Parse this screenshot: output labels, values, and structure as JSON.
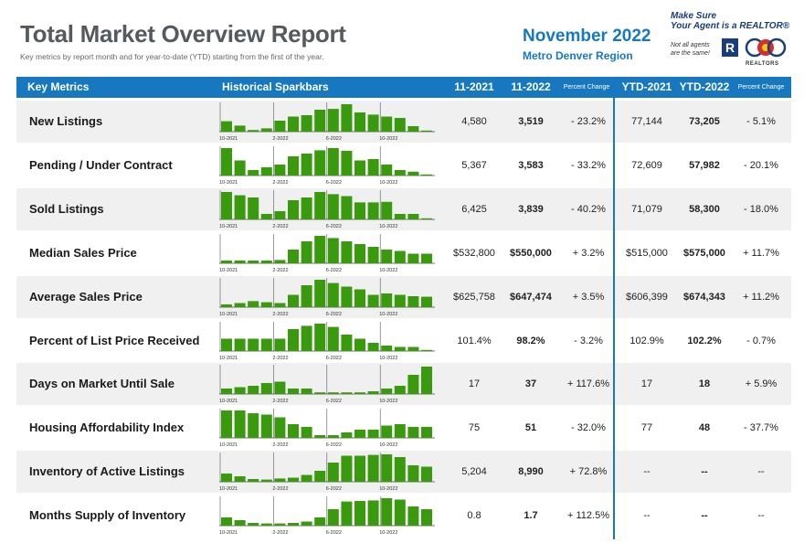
{
  "header": {
    "title": "Total Market Overview Report",
    "subtitle": "Key metrics by report month and for year-to-date (YTD) starting from the first of the year.",
    "report_month": "November 2022",
    "region": "Metro Denver Region"
  },
  "realtor_box": {
    "line1": "Make Sure",
    "line2": "Your Agent is a REALTOR®",
    "small1": "Not all agents",
    "small2": "are the same!",
    "realtor_mark": "R",
    "car_label": "REALTORS"
  },
  "table_header": {
    "key_metrics": "Key Metrics",
    "sparkbars": "Historical Sparkbars",
    "col_month_prev": "11-2021",
    "col_month_curr": "11-2022",
    "col_pct": "Percent Change",
    "col_ytd_prev": "YTD-2021",
    "col_ytd_curr": "YTD-2022",
    "col_ytd_pct": "Percent Change"
  },
  "spark_axis": [
    "10-2021",
    "2-2022",
    "6-2022",
    "10-2022"
  ],
  "colors": {
    "brand_blue": "#1778c0",
    "bar_green": "#3a9a0e",
    "row_shade": "#f0f0f0"
  },
  "rows": [
    {
      "label": "New Listings",
      "m2021": "4,580",
      "m2022": "3,519",
      "pct": "- 23.2%",
      "ytd2021": "77,144",
      "ytd2022": "73,205",
      "ytdpct": "- 5.1%",
      "bars": [
        0.38,
        0.22,
        0.06,
        0.12,
        0.4,
        0.55,
        0.6,
        0.8,
        0.83,
        1.0,
        0.7,
        0.62,
        0.55,
        0.5,
        0.2,
        0.04
      ]
    },
    {
      "label": "Pending / Under Contract",
      "m2021": "5,367",
      "m2022": "3,583",
      "pct": "- 33.2%",
      "ytd2021": "72,609",
      "ytd2022": "57,982",
      "ytdpct": "- 20.1%",
      "bars": [
        1.0,
        0.55,
        0.2,
        0.3,
        0.4,
        0.7,
        0.8,
        0.92,
        1.0,
        0.9,
        0.55,
        0.6,
        0.4,
        0.2,
        0.14,
        0.04
      ]
    },
    {
      "label": "Sold Listings",
      "m2021": "6,425",
      "m2022": "3,839",
      "pct": "- 40.2%",
      "ytd2021": "71,079",
      "ytd2022": "58,300",
      "ytdpct": "- 18.0%",
      "bars": [
        1.0,
        0.88,
        0.8,
        0.2,
        0.3,
        0.7,
        0.8,
        1.0,
        0.92,
        0.85,
        0.62,
        0.62,
        0.64,
        0.2,
        0.2,
        0.04
      ]
    },
    {
      "label": "Median Sales Price",
      "m2021": "$532,800",
      "m2022": "$550,000",
      "pct": "+ 3.2%",
      "ytd2021": "$515,000",
      "ytd2022": "$575,000",
      "ytdpct": "+ 11.7%",
      "bars": [
        0.1,
        0.1,
        0.1,
        0.1,
        0.12,
        0.5,
        0.8,
        1.0,
        0.92,
        0.8,
        0.7,
        0.6,
        0.5,
        0.45,
        0.35,
        0.35
      ]
    },
    {
      "label": "Average Sales Price",
      "m2021": "$625,758",
      "m2022": "$647,474",
      "pct": "+ 3.5%",
      "ytd2021": "$606,399",
      "ytd2022": "$674,343",
      "ytdpct": "+ 11.2%",
      "bars": [
        0.1,
        0.15,
        0.22,
        0.18,
        0.15,
        0.45,
        0.8,
        1.0,
        0.88,
        0.75,
        0.65,
        0.45,
        0.5,
        0.45,
        0.4,
        0.38
      ]
    },
    {
      "label": "Percent of List Price Received",
      "m2021": "101.4%",
      "m2022": "98.2%",
      "pct": "- 3.2%",
      "ytd2021": "102.9%",
      "ytd2022": "102.2%",
      "ytdpct": "- 0.7%",
      "bars": [
        0.45,
        0.45,
        0.45,
        0.45,
        0.45,
        0.8,
        0.92,
        1.0,
        0.88,
        0.6,
        0.45,
        0.3,
        0.2,
        0.15,
        0.15,
        0.04
      ]
    },
    {
      "label": "Days on Market Until Sale",
      "m2021": "17",
      "m2022": "37",
      "pct": "+ 117.6%",
      "ytd2021": "17",
      "ytd2022": "18",
      "ytdpct": "+ 5.9%",
      "bars": [
        0.2,
        0.25,
        0.3,
        0.4,
        0.45,
        0.2,
        0.2,
        0.06,
        0.06,
        0.06,
        0.06,
        0.1,
        0.2,
        0.3,
        0.7,
        1.0
      ]
    },
    {
      "label": "Housing Affordability Index",
      "m2021": "75",
      "m2022": "51",
      "pct": "- 32.0%",
      "ytd2021": "77",
      "ytd2022": "48",
      "ytdpct": "- 37.7%",
      "bars": [
        1.0,
        1.0,
        0.9,
        0.85,
        0.75,
        0.5,
        0.4,
        0.1,
        0.1,
        0.2,
        0.3,
        0.3,
        0.45,
        0.5,
        0.4,
        0.4
      ]
    },
    {
      "label": "Inventory of Active Listings",
      "m2021": "5,204",
      "m2022": "8,990",
      "pct": "+ 72.8%",
      "ytd2021": "--",
      "ytd2022": "--",
      "ytdpct": "--",
      "bars": [
        0.3,
        0.2,
        0.1,
        0.08,
        0.12,
        0.15,
        0.25,
        0.4,
        0.7,
        0.95,
        0.95,
        0.98,
        1.0,
        0.9,
        0.6,
        0.55
      ]
    },
    {
      "label": "Months Supply of Inventory",
      "m2021": "0.8",
      "m2022": "1.7",
      "pct": "+ 112.5%",
      "ytd2021": "--",
      "ytd2022": "--",
      "ytdpct": "--",
      "bars": [
        0.3,
        0.2,
        0.1,
        0.08,
        0.08,
        0.1,
        0.15,
        0.3,
        0.6,
        0.88,
        0.9,
        0.92,
        1.0,
        0.95,
        0.7,
        0.6
      ]
    }
  ]
}
